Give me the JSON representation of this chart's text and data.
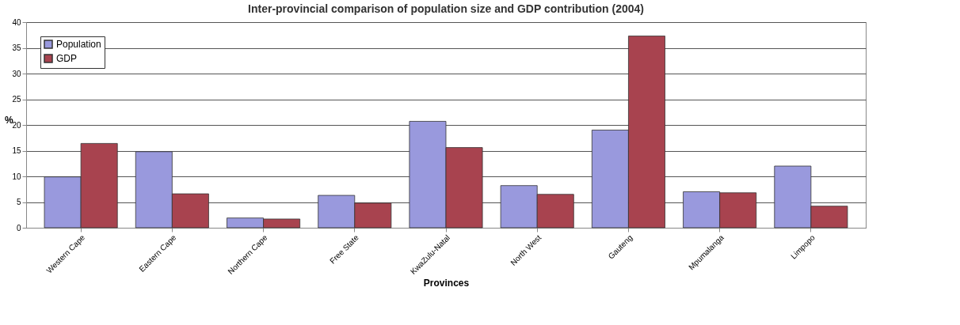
{
  "chart_data": {
    "type": "bar",
    "title": "Inter-provincial comparison of population size and GDP contribution (2004)",
    "xlabel": "Provinces",
    "ylabel": "%",
    "categories": [
      "Western Cape",
      "Eastern Cape",
      "Northern Cape",
      "Free State",
      "KwaZulu-Natal",
      "North West",
      "Gauteng",
      "Mpumalanga",
      "Limpopo"
    ],
    "series": [
      {
        "name": "Population",
        "color": "#9999dd",
        "values": [
          9.9,
          14.8,
          1.9,
          6.3,
          20.7,
          8.2,
          19.0,
          7.0,
          12.0
        ]
      },
      {
        "name": "GDP",
        "color": "#a8434f",
        "values": [
          16.4,
          6.6,
          1.7,
          4.8,
          15.6,
          6.5,
          37.3,
          6.8,
          4.2
        ]
      }
    ],
    "ylim": [
      0,
      40
    ],
    "yticks": [
      0,
      5,
      10,
      15,
      20,
      25,
      30,
      35,
      40
    ],
    "grid": "y",
    "legend": "top left"
  }
}
